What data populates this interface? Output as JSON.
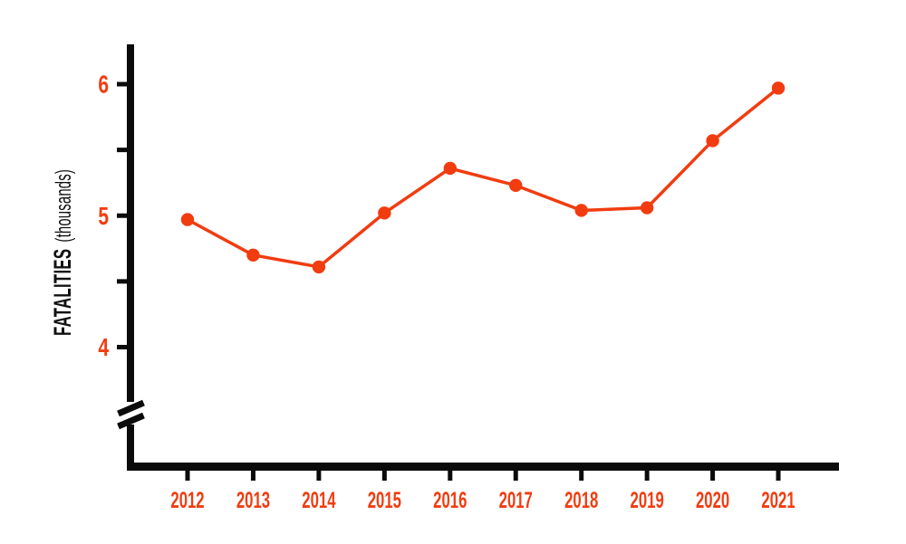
{
  "colors": {
    "background": "#FFFFFF",
    "accent": "#F13C10",
    "axis": "#0B0B0B",
    "title_text": "#111111"
  },
  "chart_data": {
    "type": "line",
    "title": "",
    "xlabel": "",
    "ylabel": "FATALITIES (thousands)",
    "ylabel_main": "FATALITIES",
    "ylabel_sub": "(thousands)",
    "categories": [
      "2012",
      "2013",
      "2014",
      "2015",
      "2016",
      "2017",
      "2018",
      "2019",
      "2020",
      "2021"
    ],
    "series": [
      {
        "name": "Fatalities (thousands)",
        "values": [
          4.97,
          4.7,
          4.61,
          5.02,
          5.36,
          5.23,
          5.04,
          5.06,
          5.57,
          5.97
        ]
      }
    ],
    "yticks_major": [
      6,
      5,
      4
    ],
    "yticks_minor": [
      5.5,
      4.5
    ],
    "ylim_shown": [
      4,
      6.4
    ],
    "y_axis_break": true,
    "grid": false,
    "legend": false,
    "marker": "circle",
    "line_color": "#F13C10",
    "tick_label_color": "#F13C10",
    "axis_color": "#0B0B0B"
  }
}
